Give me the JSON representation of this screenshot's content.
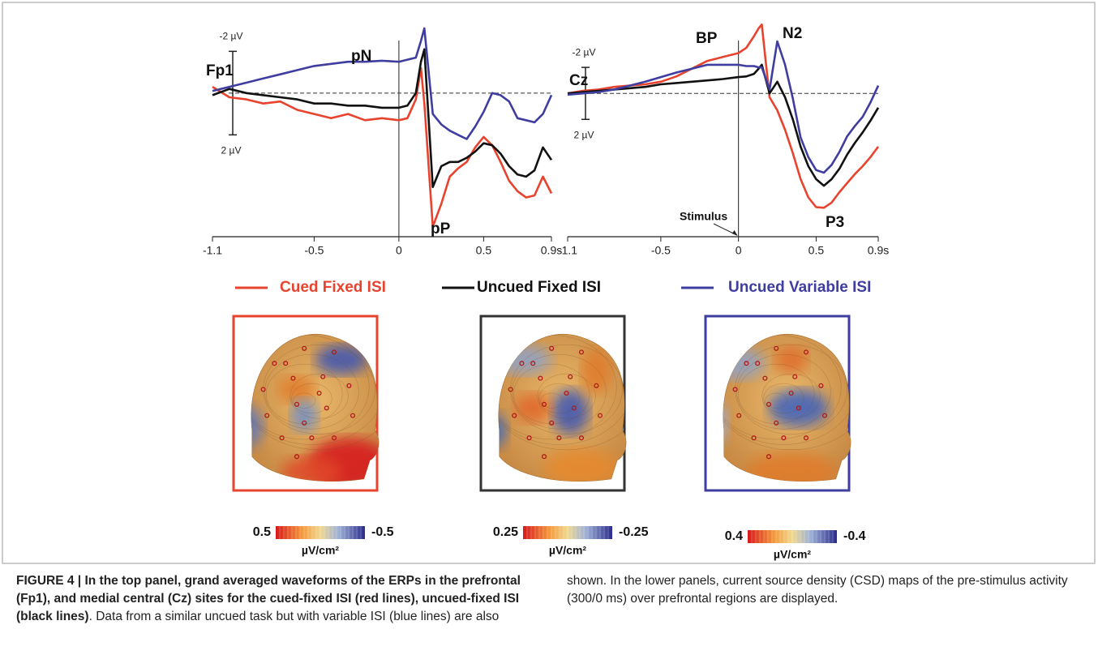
{
  "chart_data": [
    {
      "type": "line",
      "channel": "Fp1",
      "x": [
        -1.1,
        -1.0,
        -0.9,
        -0.8,
        -0.7,
        -0.6,
        -0.5,
        -0.4,
        -0.3,
        -0.2,
        -0.1,
        0,
        0.05,
        0.1,
        0.13,
        0.15,
        0.2,
        0.25,
        0.3,
        0.35,
        0.4,
        0.45,
        0.5,
        0.55,
        0.6,
        0.65,
        0.7,
        0.75,
        0.8,
        0.85,
        0.9
      ],
      "series": [
        {
          "name": "Cued Fixed ISI",
          "color": "#e8432e",
          "values": [
            -0.3,
            0.2,
            0.3,
            0.5,
            0.4,
            0.8,
            1.0,
            1.2,
            1.0,
            1.3,
            1.2,
            1.3,
            1.2,
            0.3,
            -1.2,
            0.5,
            6.4,
            5.3,
            4.0,
            3.6,
            3.3,
            2.6,
            2.1,
            2.5,
            3.3,
            4.2,
            4.7,
            5.0,
            4.9,
            4.0,
            4.8
          ]
        },
        {
          "name": "Uncued Fixed ISI",
          "color": "#111111",
          "values": [
            0.1,
            -0.2,
            0.0,
            0.1,
            0.2,
            0.3,
            0.5,
            0.5,
            0.6,
            0.6,
            0.7,
            0.7,
            0.6,
            0.0,
            -1.5,
            -2.1,
            4.5,
            3.5,
            3.3,
            3.3,
            3.1,
            2.8,
            2.4,
            2.5,
            2.9,
            3.5,
            3.9,
            4.0,
            3.7,
            2.6,
            3.2
          ]
        },
        {
          "name": "Uncued Variable ISI",
          "color": "#3f3ea0",
          "values": [
            -0.1,
            -0.3,
            -0.5,
            -0.7,
            -0.9,
            -1.1,
            -1.3,
            -1.4,
            -1.5,
            -1.5,
            -1.55,
            -1.5,
            -1.6,
            -1.7,
            -2.5,
            -3.1,
            1.0,
            1.5,
            1.8,
            2.0,
            2.2,
            1.6,
            0.9,
            0.0,
            0.1,
            0.4,
            1.2,
            1.3,
            1.4,
            1.0,
            0.1
          ]
        }
      ],
      "xlim": [
        -1.1,
        0.9
      ],
      "xticks": [
        -1.1,
        -0.5,
        0,
        0.5,
        {
          "value": 0.9,
          "label": "0.9s"
        }
      ],
      "ylim": [
        6.8,
        -3.1
      ],
      "scale_bar": [
        {
          "value": -2,
          "label": "-2 µV"
        },
        {
          "value": 2,
          "label": "2 µV"
        }
      ],
      "annotations": [
        "pN",
        "pP"
      ]
    },
    {
      "type": "line",
      "channel": "Cz",
      "x": [
        -1.1,
        -1.0,
        -0.9,
        -0.8,
        -0.7,
        -0.6,
        -0.5,
        -0.4,
        -0.3,
        -0.2,
        -0.1,
        0,
        0.05,
        0.1,
        0.13,
        0.15,
        0.2,
        0.25,
        0.3,
        0.35,
        0.4,
        0.45,
        0.5,
        0.55,
        0.6,
        0.65,
        0.7,
        0.75,
        0.8,
        0.85,
        0.9
      ],
      "series": [
        {
          "name": "Cued Fixed ISI",
          "color": "#e8432e",
          "values": [
            0,
            -0.2,
            -0.3,
            -0.5,
            -0.6,
            -0.7,
            -0.9,
            -1.3,
            -1.9,
            -2.5,
            -2.8,
            -3.1,
            -3.5,
            -4.4,
            -5.0,
            -5.3,
            0.3,
            1.3,
            2.8,
            4.6,
            6.6,
            8.0,
            8.75,
            8.8,
            8.4,
            7.6,
            6.9,
            6.2,
            5.6,
            4.9,
            4.1
          ]
        },
        {
          "name": "Uncued Fixed ISI",
          "color": "#111111",
          "values": [
            0,
            -0.1,
            -0.2,
            -0.3,
            -0.4,
            -0.5,
            -0.7,
            -0.8,
            -0.9,
            -1.0,
            -1.1,
            -1.25,
            -1.3,
            -1.5,
            -1.9,
            -2.2,
            0.0,
            -0.9,
            0.3,
            2.0,
            4.1,
            5.6,
            6.6,
            7.1,
            6.6,
            5.8,
            4.7,
            3.8,
            3.0,
            2.1,
            1.1
          ]
        },
        {
          "name": "Uncued Variable ISI",
          "color": "#3f3ea0",
          "values": [
            0.1,
            0,
            -0.1,
            -0.3,
            -0.6,
            -0.9,
            -1.25,
            -1.6,
            -1.9,
            -2.2,
            -2.2,
            -2.2,
            -2.1,
            -2.1,
            -2.0,
            -2.0,
            -0.3,
            -4.0,
            -2.2,
            0.4,
            3.4,
            4.9,
            5.9,
            6.1,
            5.5,
            4.5,
            3.3,
            2.5,
            1.8,
            0.7,
            -0.6
          ]
        }
      ],
      "xlim": [
        -1.1,
        0.9
      ],
      "xticks": [
        -1.1,
        -0.5,
        0,
        0.5,
        {
          "value": 0.9,
          "label": "0.9s"
        }
      ],
      "ylim": [
        10.9,
        -5
      ],
      "scale_bar": [
        {
          "value": -2,
          "label": "-2 µV"
        },
        {
          "value": 2,
          "label": "2 µV"
        }
      ],
      "annotations": [
        "BP",
        "N2",
        "P3",
        "Stimulus"
      ]
    }
  ],
  "topomaps": [
    {
      "frame_color": "#e8432e",
      "max": 0.5,
      "min": -0.5,
      "unit": "µV/cm²"
    },
    {
      "frame_color": "#333333",
      "max": 0.25,
      "min": -0.25,
      "unit": "µV/cm²"
    },
    {
      "frame_color": "#3f3ea0",
      "max": 0.4,
      "min": -0.4,
      "unit": "µV/cm²"
    }
  ],
  "caption": {
    "label": "FIGURE 4 |",
    "bold": "In the top panel, grand averaged waveforms of the ERPs in the prefrontal (Fp1), and medial central (Cz) sites for the cued-fixed ISI (red lines), uncued-fixed ISI (black lines)",
    "text": ". Data from a similar uncued task but with variable ISI (blue lines) are also shown. In the lower panels, current source density (CSD) maps of the pre-stimulus activity (300/0 ms) over prefrontal regions are displayed."
  }
}
